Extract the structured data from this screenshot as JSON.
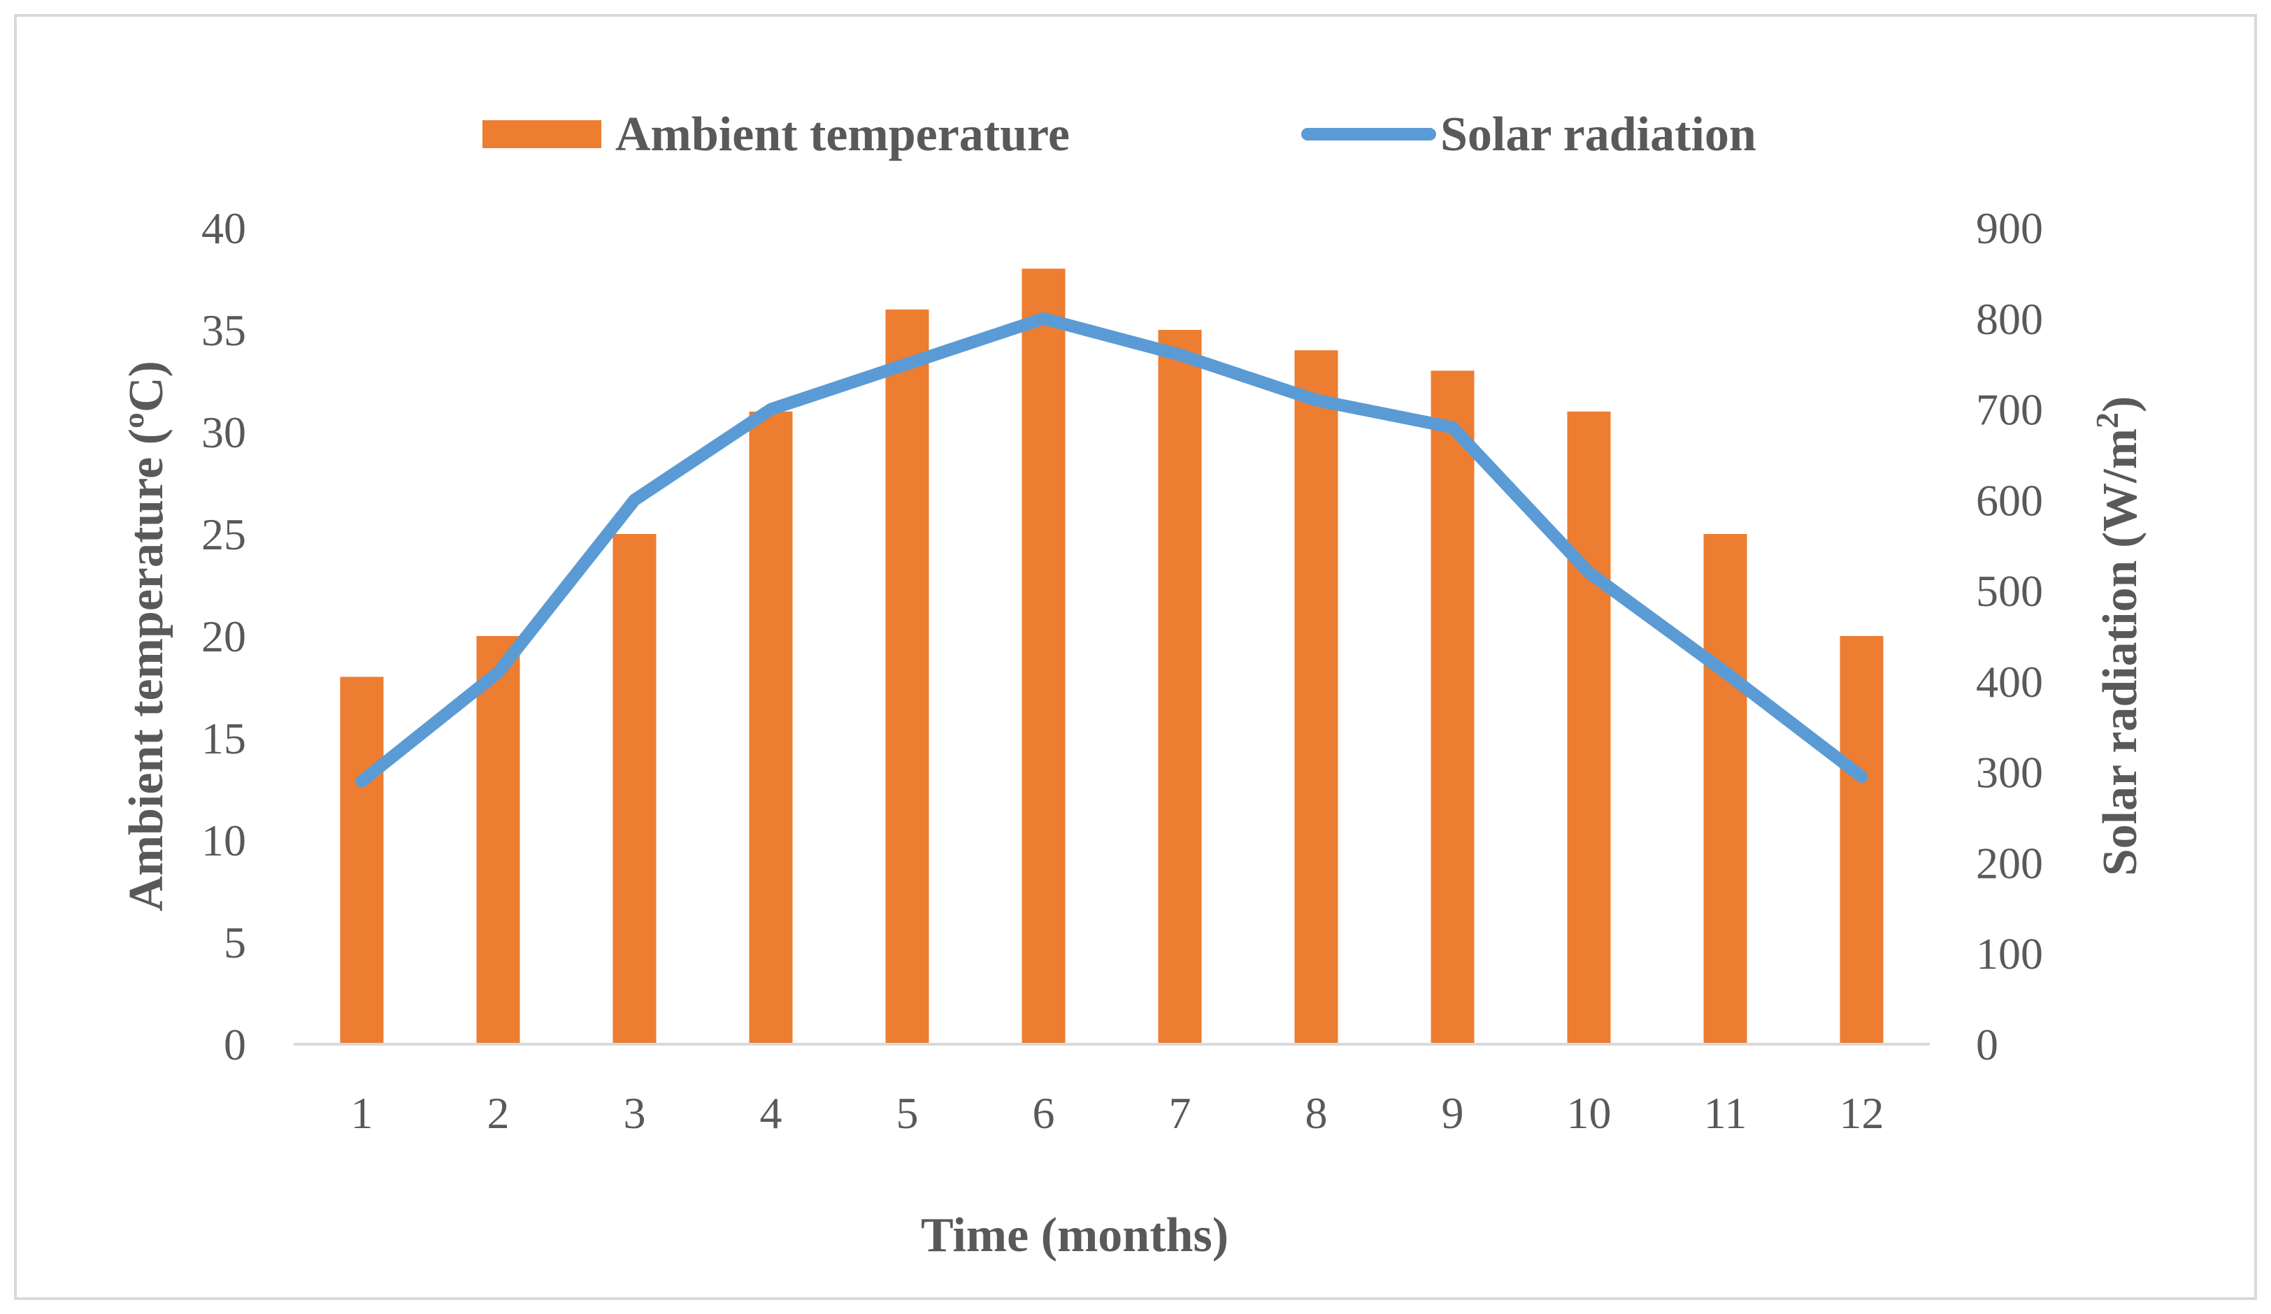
{
  "chart_data": {
    "type": "bar",
    "categories": [
      "1",
      "2",
      "3",
      "4",
      "5",
      "6",
      "7",
      "8",
      "9",
      "10",
      "11",
      "12"
    ],
    "series": [
      {
        "name": "Ambient temperature",
        "type": "bar",
        "axis": "left",
        "color": "#ED7D31",
        "values": [
          18,
          20,
          25,
          31,
          36,
          38,
          35,
          34,
          33,
          31,
          25,
          20
        ]
      },
      {
        "name": "Solar radiation",
        "type": "line",
        "axis": "right",
        "color": "#5B9BD5",
        "values": [
          290,
          410,
          600,
          700,
          750,
          800,
          760,
          710,
          680,
          520,
          410,
          295
        ]
      }
    ],
    "xlabel": "Time (months)",
    "ylabel": "Ambient temperature (ºC)",
    "ylabel_right_prefix": "Solar radiation (W/m",
    "ylabel_right_sup": "2",
    "ylabel_right_suffix": ")",
    "ylim": [
      0,
      40
    ],
    "yticks": [
      "0",
      "5",
      "10",
      "15",
      "20",
      "25",
      "30",
      "35",
      "40"
    ],
    "ylim_right": [
      0,
      900
    ],
    "yticks_right": [
      "0",
      "100",
      "200",
      "300",
      "400",
      "500",
      "600",
      "700",
      "800",
      "900"
    ],
    "legend_position": "top-center",
    "grid": false
  }
}
